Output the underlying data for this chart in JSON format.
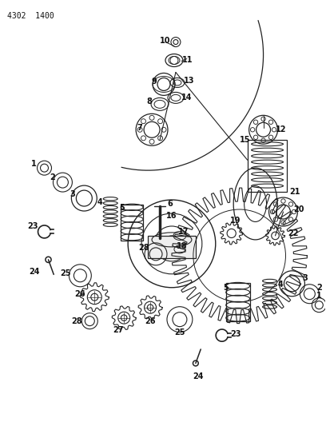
{
  "bg_color": "#ffffff",
  "line_color": "#222222",
  "text_color": "#111111",
  "header_text": "4302  1400",
  "fig_width": 4.08,
  "fig_height": 5.33,
  "dpi": 100
}
